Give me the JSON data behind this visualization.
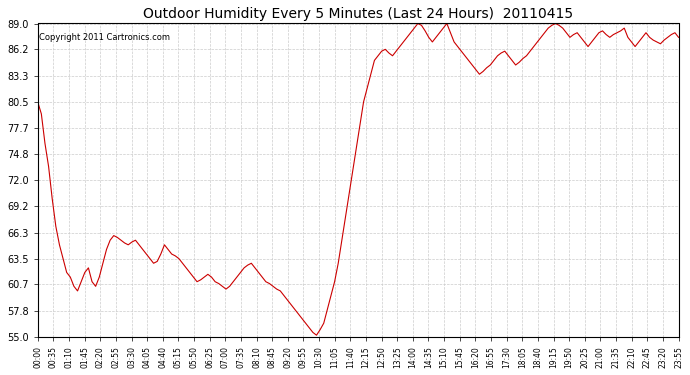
{
  "title": "Outdoor Humidity Every 5 Minutes (Last 24 Hours)  20110415",
  "copyright": "Copyright 2011 Cartronics.com",
  "line_color": "#cc0000",
  "bg_color": "#ffffff",
  "grid_color": "#cccccc",
  "ylim": [
    55.0,
    89.0
  ],
  "yticks": [
    55.0,
    57.8,
    60.7,
    63.5,
    66.3,
    69.2,
    72.0,
    74.8,
    77.7,
    80.5,
    83.3,
    86.2,
    89.0
  ],
  "xtick_labels": [
    "00:00",
    "00:35",
    "01:10",
    "01:45",
    "02:20",
    "02:55",
    "03:30",
    "04:05",
    "04:40",
    "05:15",
    "05:50",
    "06:25",
    "07:00",
    "07:35",
    "08:10",
    "08:45",
    "09:20",
    "09:55",
    "10:30",
    "11:05",
    "11:40",
    "12:15",
    "12:50",
    "13:25",
    "14:00",
    "14:35",
    "15:10",
    "15:45",
    "16:20",
    "16:55",
    "17:30",
    "18:05",
    "18:40",
    "19:15",
    "19:50",
    "20:25",
    "21:00",
    "21:35",
    "22:10",
    "22:45",
    "23:20",
    "23:55"
  ],
  "humidity_values": [
    80.5,
    79.2,
    76.0,
    73.5,
    70.0,
    67.0,
    65.0,
    63.5,
    62.0,
    61.5,
    60.5,
    60.0,
    61.0,
    62.0,
    62.5,
    61.0,
    60.5,
    61.5,
    63.0,
    64.5,
    65.5,
    66.0,
    65.8,
    65.5,
    65.2,
    65.0,
    65.3,
    65.5,
    65.0,
    64.5,
    64.0,
    63.5,
    63.0,
    63.2,
    64.0,
    65.0,
    64.5,
    64.0,
    63.8,
    63.5,
    63.0,
    62.5,
    62.0,
    61.5,
    61.0,
    61.2,
    61.5,
    61.8,
    61.5,
    61.0,
    60.8,
    60.5,
    60.2,
    60.5,
    61.0,
    61.5,
    62.0,
    62.5,
    62.8,
    63.0,
    62.5,
    62.0,
    61.5,
    61.0,
    60.8,
    60.5,
    60.2,
    60.0,
    59.5,
    59.0,
    58.5,
    58.0,
    57.5,
    57.0,
    56.5,
    56.0,
    55.5,
    55.2,
    55.8,
    56.5,
    58.0,
    59.5,
    61.0,
    63.0,
    65.5,
    68.0,
    70.5,
    73.0,
    75.5,
    78.0,
    80.5,
    82.0,
    83.5,
    85.0,
    85.5,
    86.0,
    86.2,
    85.8,
    85.5,
    86.0,
    86.5,
    87.0,
    87.5,
    88.0,
    88.5,
    89.0,
    88.8,
    88.2,
    87.5,
    87.0,
    87.5,
    88.0,
    88.5,
    89.0,
    88.0,
    87.0,
    86.5,
    86.0,
    85.5,
    85.0,
    84.5,
    84.0,
    83.5,
    83.8,
    84.2,
    84.5,
    85.0,
    85.5,
    85.8,
    86.0,
    85.5,
    85.0,
    84.5,
    84.8,
    85.2,
    85.5,
    86.0,
    86.5,
    87.0,
    87.5,
    88.0,
    88.5,
    88.8,
    89.0,
    88.8,
    88.5,
    88.0,
    87.5,
    87.8,
    88.0,
    87.5,
    87.0,
    86.5,
    87.0,
    87.5,
    88.0,
    88.2,
    87.8,
    87.5,
    87.8,
    88.0,
    88.2,
    88.5,
    87.5,
    87.0,
    86.5,
    87.0,
    87.5,
    88.0,
    87.5,
    87.2,
    87.0,
    86.8,
    87.2,
    87.5,
    87.8,
    88.0,
    87.5
  ]
}
